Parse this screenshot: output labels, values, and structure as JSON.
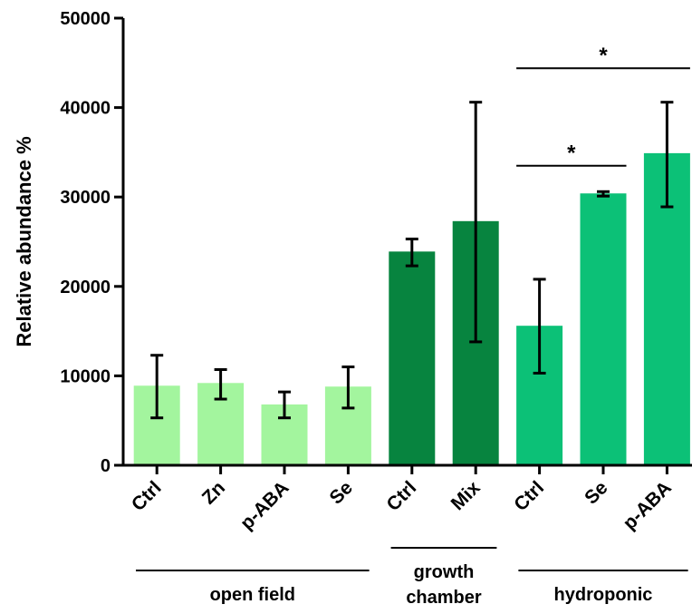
{
  "chart_data": {
    "type": "bar",
    "ylabel": "Relative abundance %",
    "xlabel": "",
    "title": "",
    "ylim": [
      0,
      50000
    ],
    "yticks": [
      0,
      10000,
      20000,
      30000,
      40000,
      50000
    ],
    "grid": false,
    "categories": [
      "Ctrl",
      "Zn",
      "p-ABA",
      "Se",
      "Ctrl",
      "Mix",
      "Ctrl",
      "Se",
      "p-ABA"
    ],
    "values": [
      8900,
      9200,
      6800,
      8800,
      23900,
      27300,
      15600,
      30400,
      34900
    ],
    "error_low": [
      5300,
      7400,
      5300,
      6400,
      22300,
      13800,
      10300,
      30100,
      28900
    ],
    "error_high": [
      12300,
      10700,
      8200,
      11000,
      25300,
      40600,
      20800,
      30600,
      40600
    ],
    "groups": [
      {
        "label": "open field",
        "start": 0,
        "end": 3,
        "color": "#a3f59e"
      },
      {
        "label": "growth\nchamber",
        "start": 4,
        "end": 5,
        "color": "#07843f"
      },
      {
        "label": "hydroponic",
        "start": 6,
        "end": 8,
        "color": "#0cc177"
      }
    ],
    "annotations": [
      {
        "text": "*",
        "from": 6,
        "to": 7,
        "level": 33500
      },
      {
        "text": "*",
        "from": 6,
        "to": 8,
        "level": 44400
      }
    ]
  }
}
